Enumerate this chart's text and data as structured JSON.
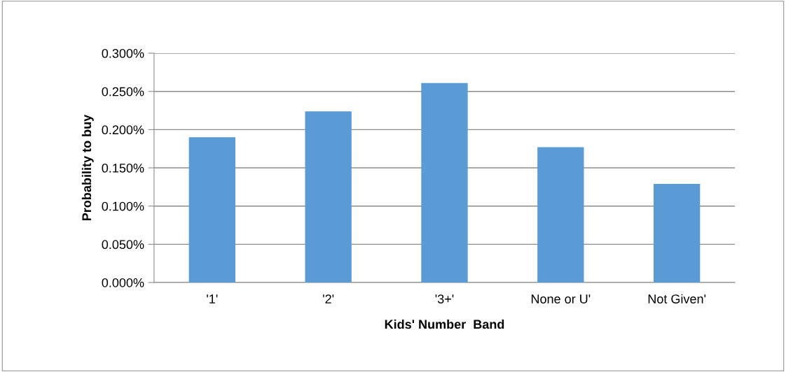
{
  "chart_data": {
    "type": "bar",
    "xlabel": "Kids' Number  Band",
    "ylabel": "Probability to buy",
    "categories": [
      "'1'",
      "'2'",
      "'3+'",
      "None or U'",
      "Not Given'"
    ],
    "values": [
      0.19,
      0.224,
      0.261,
      0.177,
      0.129
    ],
    "color": "#5b9bd5",
    "ylim": [
      0,
      0.3
    ],
    "yticks": [
      {
        "value": 0,
        "label": "0.000%"
      },
      {
        "value": 0.05,
        "label": "0.050%"
      },
      {
        "value": 0.1,
        "label": "0.100%"
      },
      {
        "value": 0.15,
        "label": "0.150%"
      },
      {
        "value": 0.2,
        "label": "0.200%"
      },
      {
        "value": 0.25,
        "label": "0.250%"
      },
      {
        "value": 0.3,
        "label": "0.300%"
      }
    ],
    "grid": "y",
    "legend": false
  }
}
